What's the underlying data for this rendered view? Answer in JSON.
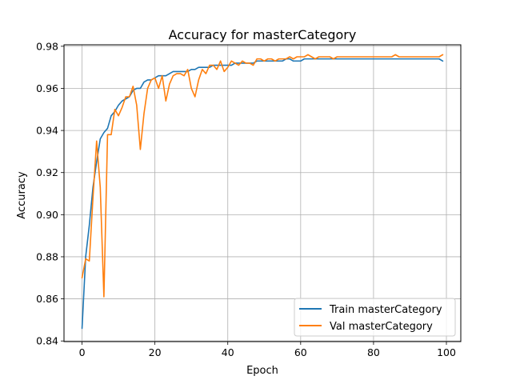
{
  "chart_data": {
    "type": "line",
    "title": "Accuracy for masterCategory",
    "xlabel": "Epoch",
    "ylabel": "Accuracy",
    "xlim": [
      -4.95,
      103.95
    ],
    "ylim": [
      0.8397,
      0.9807
    ],
    "xticks": [
      0,
      20,
      40,
      60,
      80,
      100
    ],
    "yticks": [
      0.84,
      0.86,
      0.88,
      0.9,
      0.92,
      0.94,
      0.96,
      0.98
    ],
    "ytick_labels": [
      "0.84",
      "0.86",
      "0.88",
      "0.90",
      "0.92",
      "0.94",
      "0.96",
      "0.98"
    ],
    "grid": true,
    "legend_position": "lower-right",
    "series": [
      {
        "name": "Train masterCategory",
        "color": "#1f77b4",
        "values": [
          0.846,
          0.88,
          0.895,
          0.913,
          0.925,
          0.936,
          0.939,
          0.941,
          0.947,
          0.949,
          0.952,
          0.954,
          0.955,
          0.956,
          0.959,
          0.96,
          0.96,
          0.963,
          0.964,
          0.964,
          0.965,
          0.966,
          0.966,
          0.966,
          0.967,
          0.968,
          0.968,
          0.968,
          0.968,
          0.968,
          0.969,
          0.969,
          0.97,
          0.97,
          0.97,
          0.97,
          0.971,
          0.971,
          0.971,
          0.971,
          0.971,
          0.971,
          0.972,
          0.972,
          0.972,
          0.972,
          0.972,
          0.972,
          0.973,
          0.973,
          0.973,
          0.973,
          0.973,
          0.973,
          0.973,
          0.973,
          0.974,
          0.974,
          0.973,
          0.973,
          0.973,
          0.974,
          0.974,
          0.974,
          0.974,
          0.974,
          0.974,
          0.974,
          0.974,
          0.974,
          0.974,
          0.974,
          0.974,
          0.974,
          0.974,
          0.974,
          0.974,
          0.974,
          0.974,
          0.974,
          0.974,
          0.974,
          0.974,
          0.974,
          0.974,
          0.974,
          0.974,
          0.974,
          0.974,
          0.974,
          0.974,
          0.974,
          0.974,
          0.974,
          0.974,
          0.974,
          0.974,
          0.974,
          0.974,
          0.973
        ]
      },
      {
        "name": "Val masterCategory",
        "color": "#ff7f0e",
        "values": [
          0.87,
          0.879,
          0.878,
          0.908,
          0.935,
          0.913,
          0.861,
          0.938,
          0.938,
          0.95,
          0.947,
          0.951,
          0.956,
          0.956,
          0.961,
          0.952,
          0.931,
          0.948,
          0.96,
          0.964,
          0.965,
          0.96,
          0.966,
          0.954,
          0.962,
          0.966,
          0.967,
          0.967,
          0.966,
          0.969,
          0.96,
          0.956,
          0.964,
          0.969,
          0.967,
          0.971,
          0.971,
          0.969,
          0.973,
          0.968,
          0.97,
          0.973,
          0.972,
          0.971,
          0.973,
          0.972,
          0.972,
          0.971,
          0.974,
          0.974,
          0.973,
          0.974,
          0.974,
          0.973,
          0.974,
          0.974,
          0.974,
          0.975,
          0.974,
          0.975,
          0.975,
          0.975,
          0.976,
          0.975,
          0.974,
          0.975,
          0.975,
          0.975,
          0.975,
          0.974,
          0.975,
          0.975,
          0.975,
          0.975,
          0.975,
          0.975,
          0.975,
          0.975,
          0.975,
          0.975,
          0.975,
          0.975,
          0.975,
          0.975,
          0.975,
          0.975,
          0.976,
          0.975,
          0.975,
          0.975,
          0.975,
          0.975,
          0.975,
          0.975,
          0.975,
          0.975,
          0.975,
          0.975,
          0.975,
          0.976
        ]
      }
    ]
  }
}
